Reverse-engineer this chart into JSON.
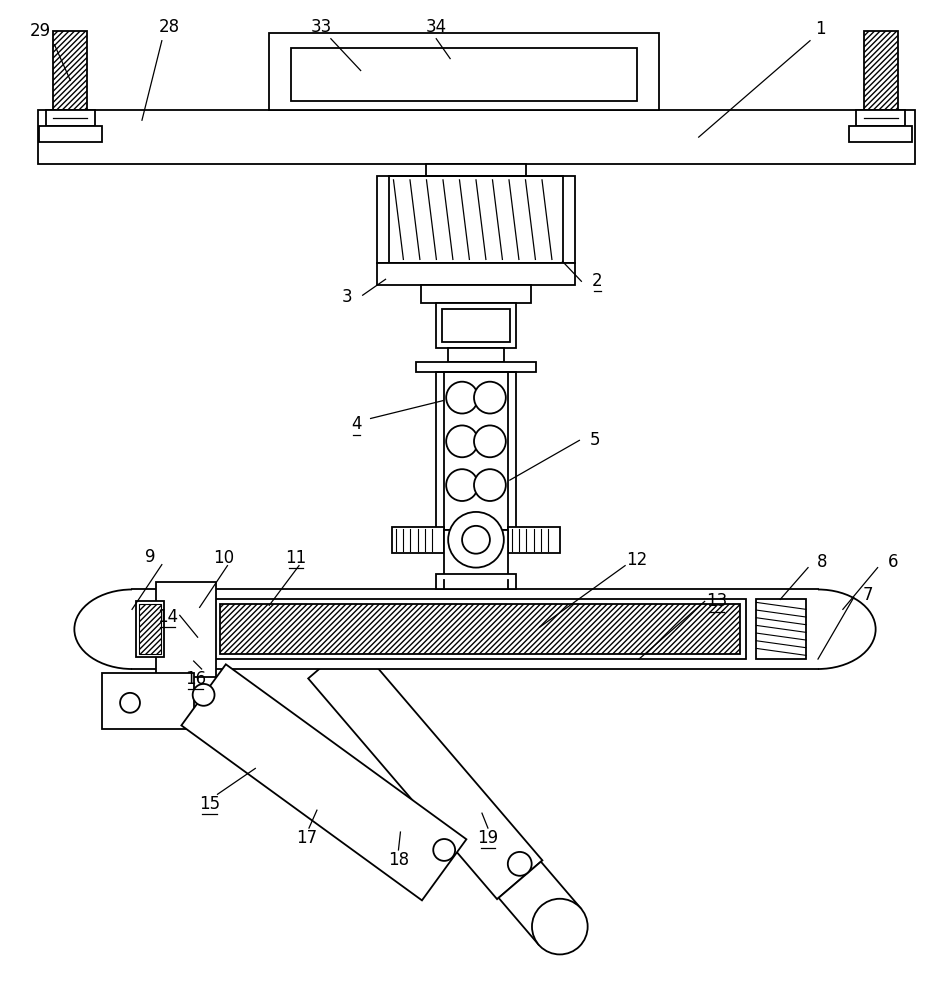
{
  "bg_color": "#ffffff",
  "line_color": "#000000",
  "fig_width": 9.51,
  "fig_height": 10.0,
  "lw": 1.3,
  "fs": 12
}
